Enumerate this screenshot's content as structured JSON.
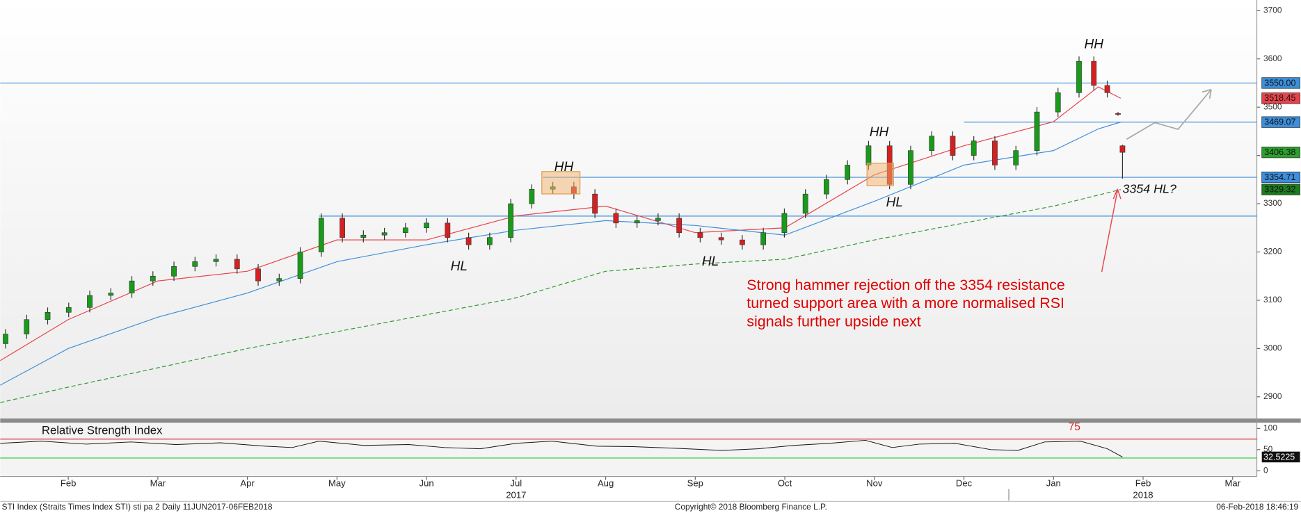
{
  "chart_data": {
    "type": "candlestick",
    "xlim": [
      0.24,
      14.27
    ],
    "xticks": [
      {
        "value": 1,
        "label": "Feb"
      },
      {
        "value": 2,
        "label": "Mar"
      },
      {
        "value": 3,
        "label": "Apr"
      },
      {
        "value": 4,
        "label": "May"
      },
      {
        "value": 5,
        "label": "Jun"
      },
      {
        "value": 6,
        "label": "Jul"
      },
      {
        "value": 7,
        "label": "Aug"
      },
      {
        "value": 8,
        "label": "Sep"
      },
      {
        "value": 9,
        "label": "Oct"
      },
      {
        "value": 10,
        "label": "Nov"
      },
      {
        "value": 11,
        "label": "Dec"
      },
      {
        "value": 12,
        "label": "Jan"
      },
      {
        "value": 13,
        "label": "Feb"
      },
      {
        "value": 14,
        "label": "Mar"
      }
    ],
    "year_labels": [
      {
        "value": 6,
        "label": "2017"
      },
      {
        "value": 13,
        "label": "2018"
      }
    ],
    "ylim": [
      2855,
      3722
    ],
    "yticks": [
      2900,
      3000,
      3100,
      3200,
      3300,
      3400,
      3500,
      3600,
      3700
    ],
    "candles": {
      "up_color": "#1a9a1a",
      "down_color": "#d42020",
      "x": [
        0.3,
        0.535,
        0.77,
        1.005,
        1.24,
        1.475,
        1.71,
        1.945,
        2.18,
        2.415,
        2.65,
        2.885,
        3.12,
        3.355,
        3.59,
        3.825,
        4.06,
        4.295,
        4.53,
        4.765,
        5.0,
        5.235,
        5.47,
        5.705,
        5.94,
        6.175,
        6.41,
        6.645,
        6.88,
        7.115,
        7.35,
        7.585,
        7.82,
        8.055,
        8.29,
        8.525,
        8.76,
        8.995,
        9.23,
        9.465,
        9.7,
        9.935,
        10.17,
        10.405,
        10.64,
        10.875,
        11.11,
        11.345,
        11.58,
        11.815,
        12.05,
        12.285,
        12.45,
        12.6,
        12.72,
        12.77
      ],
      "open": [
        3010,
        3030,
        3060,
        3075,
        3085,
        3110,
        3115,
        3140,
        3150,
        3170,
        3180,
        3185,
        3165,
        3140,
        3145,
        3200,
        3270,
        3230,
        3235,
        3240,
        3250,
        3260,
        3230,
        3215,
        3230,
        3300,
        3330,
        3335,
        3320,
        3280,
        3260,
        3265,
        3270,
        3240,
        3230,
        3225,
        3215,
        3240,
        3280,
        3320,
        3350,
        3380,
        3420,
        3340,
        3410,
        3440,
        3400,
        3430,
        3380,
        3410,
        3490,
        3530,
        3595,
        3545,
        3487,
        3420
      ],
      "high": [
        3040,
        3070,
        3085,
        3095,
        3120,
        3125,
        3150,
        3160,
        3180,
        3190,
        3195,
        3195,
        3175,
        3155,
        3210,
        3280,
        3280,
        3245,
        3250,
        3260,
        3270,
        3270,
        3240,
        3240,
        3310,
        3340,
        3345,
        3345,
        3330,
        3290,
        3275,
        3280,
        3280,
        3250,
        3240,
        3235,
        3250,
        3290,
        3330,
        3360,
        3390,
        3430,
        3430,
        3420,
        3450,
        3450,
        3440,
        3440,
        3420,
        3500,
        3540,
        3605,
        3605,
        3555,
        3490,
        3422
      ],
      "low": [
        3000,
        3020,
        3050,
        3065,
        3075,
        3100,
        3105,
        3130,
        3140,
        3160,
        3170,
        3155,
        3130,
        3130,
        3135,
        3190,
        3220,
        3220,
        3225,
        3230,
        3240,
        3220,
        3205,
        3205,
        3220,
        3290,
        3320,
        3310,
        3270,
        3250,
        3250,
        3255,
        3230,
        3220,
        3215,
        3205,
        3205,
        3230,
        3270,
        3310,
        3340,
        3370,
        3330,
        3330,
        3400,
        3390,
        3390,
        3370,
        3370,
        3400,
        3480,
        3520,
        3535,
        3520,
        3482,
        3352
      ],
      "close": [
        3030,
        3060,
        3075,
        3085,
        3110,
        3115,
        3140,
        3150,
        3170,
        3180,
        3185,
        3165,
        3140,
        3145,
        3200,
        3270,
        3230,
        3235,
        3240,
        3250,
        3260,
        3230,
        3215,
        3230,
        3300,
        3330,
        3335,
        3320,
        3280,
        3260,
        3265,
        3270,
        3240,
        3230,
        3225,
        3215,
        3240,
        3280,
        3320,
        3350,
        3380,
        3420,
        3340,
        3410,
        3440,
        3400,
        3430,
        3380,
        3410,
        3490,
        3530,
        3595,
        3545,
        3530,
        3485,
        3406.38
      ]
    },
    "series": [
      {
        "color": "#e8434a",
        "dash": false,
        "x": [
          0.24,
          1,
          2,
          3,
          4,
          5,
          6,
          7,
          8,
          9,
          10,
          11,
          12,
          12.5,
          12.75
        ],
        "values": [
          2975,
          3060,
          3140,
          3160,
          3225,
          3225,
          3275,
          3295,
          3240,
          3250,
          3360,
          3420,
          3470,
          3542,
          3518.45
        ]
      },
      {
        "color": "#3d8fdc",
        "dash": false,
        "x": [
          0.24,
          1,
          2,
          3,
          4,
          5,
          6,
          7,
          8,
          9,
          10,
          11,
          12,
          12.5,
          12.75
        ],
        "values": [
          2924,
          3000,
          3065,
          3115,
          3180,
          3215,
          3245,
          3265,
          3255,
          3235,
          3305,
          3380,
          3410,
          3455,
          3469.07
        ]
      },
      {
        "color": "#2e9a2e",
        "dash": true,
        "x": [
          0.24,
          1,
          2,
          3,
          4,
          5,
          6,
          7,
          8,
          9,
          10,
          11,
          12,
          12.75
        ],
        "values": [
          2888,
          2920,
          2960,
          3000,
          3035,
          3070,
          3105,
          3160,
          3175,
          3185,
          3225,
          3260,
          3295,
          3329.32
        ]
      }
    ],
    "levels": [
      {
        "value": 3550,
        "from": 0.24
      },
      {
        "value": 3469.07,
        "from": 11.0
      },
      {
        "value": 3354.71,
        "from": 6.3
      },
      {
        "value": 3274.33,
        "from": 3.8
      }
    ],
    "markers": [
      {
        "value": 3550,
        "label": "3550.00",
        "color": "#3d8fdc"
      },
      {
        "value": 3518.45,
        "label": "3518.45",
        "color": "#e8434a"
      },
      {
        "value": 3469.07,
        "label": "3469.07",
        "color": "#3d8fdc"
      },
      {
        "value": 3406.38,
        "label": "3406.38",
        "color": "#2ca02c"
      },
      {
        "value": 3354.71,
        "label": "3354.71",
        "color": "#3d8fdc"
      },
      {
        "value": 3329.32,
        "label": "3329.32",
        "color": "#1e7d1e"
      }
    ],
    "annotations": [
      "HH",
      "HH",
      "HH",
      "HL",
      "HL",
      "HL",
      "3354 HL?"
    ],
    "note": [
      "Strong hammer rejection off the 3354 resistance",
      "turned support area with a more normalised RSI",
      "signals further upside next"
    ],
    "rsi": {
      "title": "Relative Strength Index",
      "ylim": [
        0,
        100
      ],
      "yticks": [
        0,
        50,
        100
      ],
      "upper": 75,
      "lower": 30,
      "upper_label": "75",
      "x": [
        0.24,
        0.7,
        1.2,
        1.7,
        2.2,
        2.7,
        3.2,
        3.5,
        3.8,
        4.3,
        4.8,
        5.2,
        5.6,
        6.0,
        6.4,
        6.9,
        7.3,
        7.8,
        8.3,
        8.7,
        9.1,
        9.5,
        9.9,
        10.2,
        10.5,
        10.9,
        11.3,
        11.6,
        11.9,
        12.3,
        12.6,
        12.77
      ],
      "values": [
        65,
        70,
        63,
        68,
        62,
        66,
        58,
        55,
        70,
        60,
        62,
        55,
        52,
        65,
        70,
        58,
        57,
        53,
        48,
        52,
        60,
        65,
        72,
        55,
        63,
        65,
        50,
        48,
        68,
        70,
        52,
        32.5225
      ],
      "last_label": "32.5225"
    },
    "footer": {
      "left": "STI Index (Straits Times Index STI) sti pa 2  Daily 11JUN2017-06FEB2018",
      "center": "Copyright© 2018 Bloomberg Finance L.P.",
      "right": "06-Feb-2018 18:46:19"
    }
  }
}
